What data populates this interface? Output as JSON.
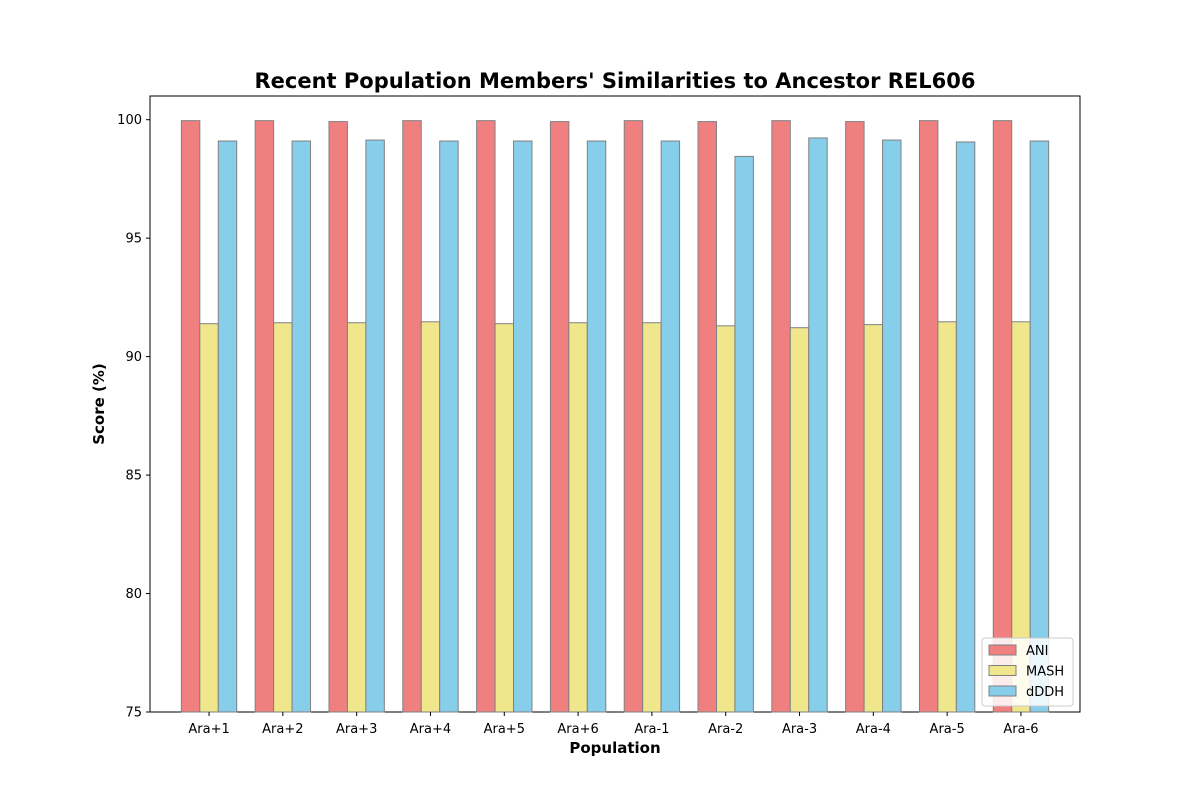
{
  "chart_data": {
    "type": "bar",
    "title": "Recent Population Members' Similarities to Ancestor REL606",
    "xlabel": "Population",
    "ylabel": "Score (%)",
    "ylim": [
      75,
      101
    ],
    "yticks": [
      75,
      80,
      85,
      90,
      95,
      100
    ],
    "grid": false,
    "legend_position": "bottom-right",
    "categories": [
      "Ara+1",
      "Ara+2",
      "Ara+3",
      "Ara+4",
      "Ara+5",
      "Ara+6",
      "Ara-1",
      "Ara-2",
      "Ara-3",
      "Ara-4",
      "Ara-5",
      "Ara-6"
    ],
    "series": [
      {
        "name": "ANI",
        "color": "#f08080",
        "values": [
          99.96,
          99.96,
          99.92,
          99.96,
          99.96,
          99.92,
          99.96,
          99.92,
          99.96,
          99.92,
          99.96,
          99.96
        ]
      },
      {
        "name": "MASH",
        "color": "#f0e68c",
        "values": [
          91.39,
          91.43,
          91.43,
          91.47,
          91.39,
          91.43,
          91.43,
          91.3,
          91.22,
          91.35,
          91.47,
          91.47
        ]
      },
      {
        "name": "dDDH",
        "color": "#87ceeb",
        "values": [
          99.1,
          99.1,
          99.14,
          99.1,
          99.1,
          99.1,
          99.1,
          98.45,
          99.23,
          99.14,
          99.06,
          99.1
        ]
      }
    ]
  }
}
